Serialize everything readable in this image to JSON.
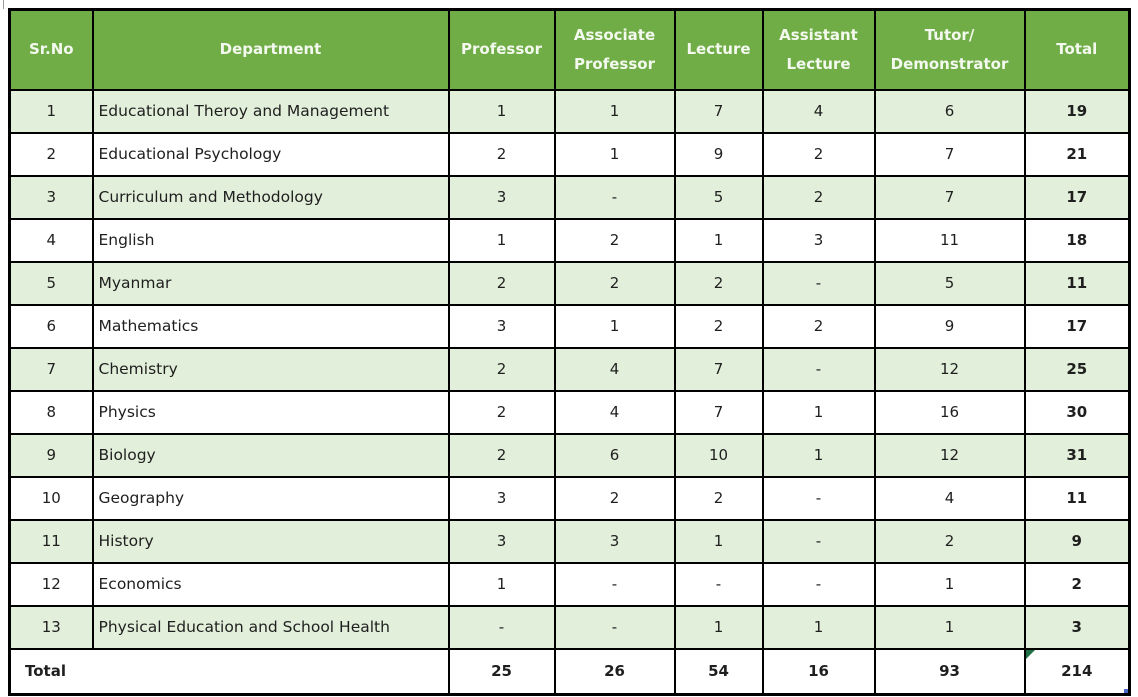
{
  "table": {
    "header": {
      "sr_no": "Sr.No",
      "department": "Department",
      "professor": "Professor",
      "associate_professor": "Associate\nProfessor",
      "lecture": "Lecture",
      "assistant_lecture": "Assistant\nLecture",
      "tutor_demonstrator": "Tutor/\nDemonstrator",
      "total": "Total"
    },
    "rows": [
      {
        "sr_no": "1",
        "department": "Educational Theroy and Management",
        "professor": "1",
        "associate_professor": "1",
        "lecture": "7",
        "assistant_lecture": "4",
        "tutor_demonstrator": "6",
        "total": "19"
      },
      {
        "sr_no": "2",
        "department": "Educational Psychology",
        "professor": "2",
        "associate_professor": "1",
        "lecture": "9",
        "assistant_lecture": "2",
        "tutor_demonstrator": "7",
        "total": "21"
      },
      {
        "sr_no": "3",
        "department": "Curriculum and Methodology",
        "professor": "3",
        "associate_professor": "-",
        "lecture": "5",
        "assistant_lecture": "2",
        "tutor_demonstrator": "7",
        "total": "17"
      },
      {
        "sr_no": "4",
        "department": "English",
        "professor": "1",
        "associate_professor": "2",
        "lecture": "1",
        "assistant_lecture": "3",
        "tutor_demonstrator": "11",
        "total": "18"
      },
      {
        "sr_no": "5",
        "department": "Myanmar",
        "professor": "2",
        "associate_professor": "2",
        "lecture": "2",
        "assistant_lecture": "-",
        "tutor_demonstrator": "5",
        "total": "11"
      },
      {
        "sr_no": "6",
        "department": "Mathematics",
        "professor": "3",
        "associate_professor": "1",
        "lecture": "2",
        "assistant_lecture": "2",
        "tutor_demonstrator": "9",
        "total": "17"
      },
      {
        "sr_no": "7",
        "department": "Chemistry",
        "professor": "2",
        "associate_professor": "4",
        "lecture": "7",
        "assistant_lecture": "-",
        "tutor_demonstrator": "12",
        "total": "25"
      },
      {
        "sr_no": "8",
        "department": "Physics",
        "professor": "2",
        "associate_professor": "4",
        "lecture": "7",
        "assistant_lecture": "1",
        "tutor_demonstrator": "16",
        "total": "30"
      },
      {
        "sr_no": "9",
        "department": "Biology",
        "professor": "2",
        "associate_professor": "6",
        "lecture": "10",
        "assistant_lecture": "1",
        "tutor_demonstrator": "12",
        "total": "31"
      },
      {
        "sr_no": "10",
        "department": "Geography",
        "professor": "3",
        "associate_professor": "2",
        "lecture": "2",
        "assistant_lecture": "-",
        "tutor_demonstrator": "4",
        "total": "11"
      },
      {
        "sr_no": "11",
        "department": "History",
        "professor": "3",
        "associate_professor": "3",
        "lecture": "1",
        "assistant_lecture": "-",
        "tutor_demonstrator": "2",
        "total": "9"
      },
      {
        "sr_no": "12",
        "department": "Economics",
        "professor": "1",
        "associate_professor": "-",
        "lecture": "-",
        "assistant_lecture": "-",
        "tutor_demonstrator": "1",
        "total": "2"
      },
      {
        "sr_no": "13",
        "department": "Physical Education and School Health",
        "professor": "-",
        "associate_professor": "-",
        "lecture": "1",
        "assistant_lecture": "1",
        "tutor_demonstrator": "1",
        "total": "3"
      }
    ],
    "footer": {
      "label": "Total",
      "professor": "25",
      "associate_professor": "26",
      "lecture": "54",
      "assistant_lecture": "16",
      "tutor_demonstrator": "93",
      "total": "214"
    }
  },
  "colors": {
    "header_bg": "#70AD47",
    "header_text": "#F4F9EF",
    "row_alt_bg": "#E2EFDA",
    "row_bg": "#FFFFFF",
    "border": "#000000",
    "error_triangle": "#1E7245",
    "fill_handle": "#4C68C8"
  },
  "artifacts": {
    "error_indicator_on": "grand-total-cell",
    "fill_handle_on": "grand-total-cell"
  }
}
